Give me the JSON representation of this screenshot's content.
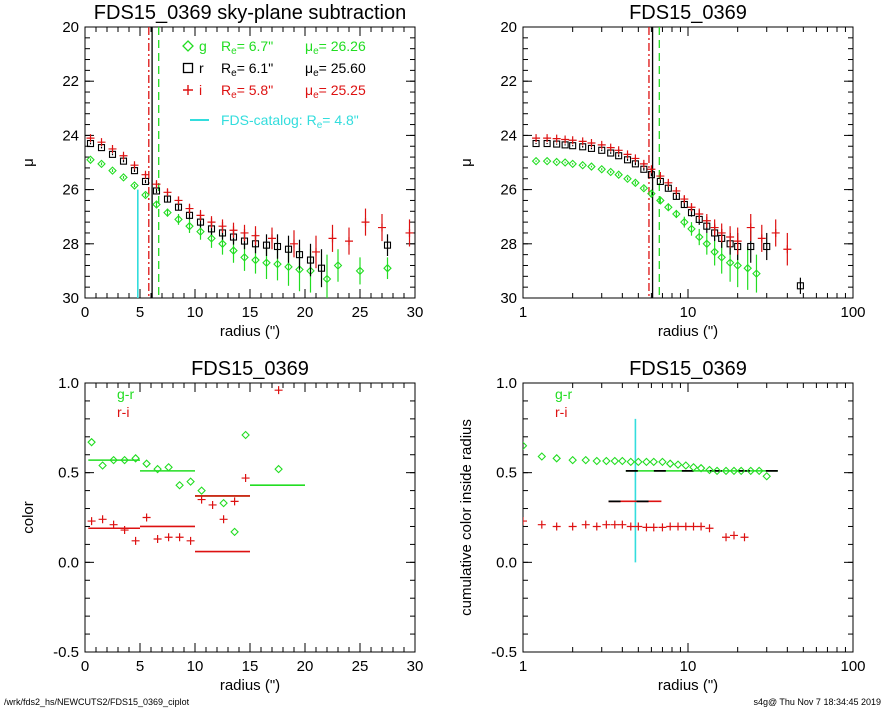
{
  "footer": {
    "path": "/wrk/fds2_hs/NEWCUTS2/FDS15_0369_ciplot",
    "stamp": "s4g@  Thu Nov  7 18:34:45 2019"
  },
  "colors": {
    "g": "#22dd22",
    "r": "#000000",
    "i": "#dd1111",
    "catalog": "#33dddd"
  },
  "chart_data": [
    {
      "id": "p1",
      "type": "scatter",
      "title": "FDS15_0369 sky-plane subtraction",
      "xlabel": "radius (\")",
      "ylabel": "μ",
      "xlim": [
        0,
        30
      ],
      "ylim": [
        30,
        20
      ],
      "xscale": "linear",
      "xticks": [
        0,
        5,
        10,
        15,
        20,
        25,
        30
      ],
      "yticks": [
        20,
        22,
        24,
        26,
        28,
        30
      ],
      "legend": {
        "placement": "top-center",
        "rows": [
          {
            "band": "g",
            "re_label": "R",
            "re_sub": "e",
            "re_value": "=   6.7\"",
            "mu_label": "μ",
            "mu_sub": "e",
            "mu_value": "= 26.26",
            "color": "#22dd22",
            "marker": "diamond"
          },
          {
            "band": "r",
            "re_label": "R",
            "re_sub": "e",
            "re_value": "=   6.1\"",
            "mu_label": "μ",
            "mu_sub": "e",
            "mu_value": "= 25.60",
            "color": "#000000",
            "marker": "square"
          },
          {
            "band": "i",
            "re_label": "R",
            "re_sub": "e",
            "re_value": "=   5.8\"",
            "mu_label": "μ",
            "mu_sub": "e",
            "mu_value": "= 25.25",
            "color": "#dd1111",
            "marker": "plus"
          }
        ],
        "catalog": {
          "label": "FDS-catalog: R",
          "sub": "e",
          "value": "=   4.8\"",
          "color": "#33dddd"
        }
      },
      "vlines": [
        {
          "x": 6.7,
          "color": "#22dd22",
          "style": "dashed"
        },
        {
          "x": 6.1,
          "color": "#000000",
          "style": "solid"
        },
        {
          "x": 5.8,
          "color": "#dd1111",
          "style": "dashdot"
        }
      ],
      "catalog_line": {
        "x": 4.8,
        "y0": 30,
        "y1": 26.0
      },
      "series": [
        {
          "name": "g",
          "marker": "diamond",
          "color": "#22dd22",
          "x": [
            0.5,
            1.5,
            2.5,
            3.5,
            4.5,
            5.5,
            6.5,
            7.5,
            8.5,
            9.5,
            10.5,
            11.5,
            12.5,
            13.5,
            14.5,
            15.5,
            16.5,
            17.5,
            18.5,
            19.5,
            20.5,
            22,
            23,
            25,
            27.5
          ],
          "y": [
            24.9,
            25.05,
            25.3,
            25.55,
            25.85,
            26.2,
            26.55,
            26.85,
            27.1,
            27.35,
            27.55,
            27.8,
            28.0,
            28.25,
            28.5,
            28.6,
            28.7,
            28.75,
            28.85,
            28.95,
            29.0,
            29.3,
            28.8,
            29.0,
            28.9
          ],
          "err": [
            0.05,
            0.05,
            0.05,
            0.05,
            0.06,
            0.08,
            0.1,
            0.15,
            0.2,
            0.25,
            0.3,
            0.35,
            0.4,
            0.45,
            0.5,
            0.5,
            0.6,
            0.6,
            0.7,
            0.8,
            0.8,
            0.9,
            0.6,
            0.5,
            0.4
          ]
        },
        {
          "name": "r",
          "marker": "square",
          "color": "#000000",
          "x": [
            0.5,
            1.5,
            2.5,
            3.5,
            4.5,
            5.5,
            6.5,
            7.5,
            8.5,
            9.5,
            10.5,
            11.5,
            12.5,
            13.5,
            14.5,
            15.5,
            16.5,
            17.5,
            18.5,
            19.5,
            20.5,
            21.5,
            27.5
          ],
          "y": [
            24.3,
            24.45,
            24.7,
            24.95,
            25.3,
            25.7,
            26.05,
            26.35,
            26.65,
            26.95,
            27.2,
            27.45,
            27.6,
            27.75,
            27.9,
            28.0,
            28.05,
            28.1,
            28.2,
            28.4,
            28.6,
            28.9,
            28.05
          ],
          "err": [
            0.03,
            0.03,
            0.03,
            0.04,
            0.05,
            0.06,
            0.08,
            0.1,
            0.12,
            0.15,
            0.2,
            0.22,
            0.25,
            0.28,
            0.3,
            0.35,
            0.4,
            0.45,
            0.5,
            0.55,
            0.6,
            0.7,
            0.4
          ]
        },
        {
          "name": "i",
          "marker": "plus",
          "color": "#dd1111",
          "x": [
            0.5,
            1.5,
            2.5,
            3.5,
            4.5,
            5.5,
            6.5,
            7.5,
            8.5,
            9.5,
            10.5,
            11.5,
            12.5,
            13.5,
            14.5,
            15.5,
            17,
            19,
            21,
            22.5,
            24,
            25.5,
            27,
            29.5
          ],
          "y": [
            24.1,
            24.25,
            24.5,
            24.75,
            25.1,
            25.45,
            25.8,
            26.1,
            26.4,
            26.7,
            26.95,
            27.2,
            27.35,
            27.5,
            27.6,
            27.7,
            27.8,
            28.0,
            28.3,
            27.8,
            27.9,
            27.2,
            27.4,
            27.6
          ],
          "err": [
            0.03,
            0.03,
            0.04,
            0.05,
            0.06,
            0.08,
            0.1,
            0.12,
            0.15,
            0.18,
            0.2,
            0.22,
            0.25,
            0.28,
            0.3,
            0.35,
            0.4,
            0.5,
            0.6,
            0.5,
            0.5,
            0.5,
            0.5,
            0.5
          ]
        }
      ]
    },
    {
      "id": "p2",
      "type": "scatter",
      "title": "FDS15_0369",
      "xlabel": "radius (\")",
      "ylabel": "μ",
      "xlim": [
        1,
        100
      ],
      "ylim": [
        30,
        20
      ],
      "xscale": "log",
      "xticks": [
        1,
        10,
        100
      ],
      "yticks": [
        20,
        22,
        24,
        26,
        28,
        30
      ],
      "vlines": [
        {
          "x": 6.7,
          "color": "#22dd22",
          "style": "dashed"
        },
        {
          "x": 6.1,
          "color": "#000000",
          "style": "solid"
        },
        {
          "x": 5.8,
          "color": "#dd1111",
          "style": "dashdot"
        }
      ],
      "series": [
        {
          "name": "g",
          "marker": "diamond",
          "color": "#22dd22",
          "x": [
            1.2,
            1.4,
            1.6,
            1.8,
            2.0,
            2.3,
            2.6,
            3.0,
            3.4,
            3.8,
            4.3,
            4.8,
            5.4,
            6.0,
            6.8,
            7.6,
            8.5,
            9.5,
            10.5,
            11.7,
            13,
            14.5,
            16,
            18,
            20,
            23,
            26
          ],
          "y": [
            24.95,
            24.95,
            24.98,
            25.0,
            25.05,
            25.1,
            25.15,
            25.25,
            25.35,
            25.45,
            25.6,
            25.75,
            25.95,
            26.15,
            26.4,
            26.65,
            26.9,
            27.2,
            27.45,
            27.75,
            28.0,
            28.3,
            28.5,
            28.7,
            28.8,
            28.9,
            29.1
          ],
          "err": [
            0.03,
            0.03,
            0.03,
            0.03,
            0.03,
            0.03,
            0.03,
            0.04,
            0.04,
            0.05,
            0.05,
            0.06,
            0.07,
            0.08,
            0.1,
            0.12,
            0.15,
            0.2,
            0.25,
            0.3,
            0.4,
            0.5,
            0.6,
            0.7,
            0.8,
            0.8,
            0.7
          ]
        },
        {
          "name": "r",
          "marker": "square",
          "color": "#000000",
          "x": [
            1.2,
            1.4,
            1.6,
            1.8,
            2.0,
            2.3,
            2.6,
            3.0,
            3.4,
            3.8,
            4.3,
            4.8,
            5.4,
            6.0,
            6.8,
            7.6,
            8.5,
            9.5,
            10.5,
            11.7,
            13,
            14.5,
            16,
            18,
            20,
            24,
            30,
            48
          ],
          "y": [
            24.3,
            24.3,
            24.32,
            24.35,
            24.38,
            24.42,
            24.48,
            24.55,
            24.65,
            24.75,
            24.9,
            25.05,
            25.25,
            25.45,
            25.7,
            25.95,
            26.25,
            26.55,
            26.85,
            27.1,
            27.35,
            27.6,
            27.8,
            28.0,
            28.1,
            28.1,
            28.1,
            29.55
          ],
          "err": [
            0.02,
            0.02,
            0.02,
            0.02,
            0.02,
            0.03,
            0.03,
            0.03,
            0.03,
            0.04,
            0.04,
            0.05,
            0.05,
            0.06,
            0.07,
            0.08,
            0.1,
            0.12,
            0.15,
            0.2,
            0.25,
            0.3,
            0.35,
            0.4,
            0.5,
            0.6,
            0.5,
            0.3
          ]
        },
        {
          "name": "i",
          "marker": "plus",
          "color": "#dd1111",
          "x": [
            1.2,
            1.4,
            1.6,
            1.8,
            2.0,
            2.3,
            2.6,
            3.0,
            3.4,
            3.8,
            4.3,
            4.8,
            5.4,
            6.0,
            6.8,
            7.6,
            8.5,
            9.5,
            10.5,
            11.7,
            13,
            14.5,
            16,
            18,
            20,
            24,
            28,
            34,
            40
          ],
          "y": [
            24.1,
            24.1,
            24.12,
            24.15,
            24.18,
            24.22,
            24.28,
            24.35,
            24.45,
            24.55,
            24.7,
            24.85,
            25.05,
            25.25,
            25.5,
            25.75,
            26.05,
            26.35,
            26.65,
            26.9,
            27.15,
            27.4,
            27.6,
            27.75,
            27.9,
            27.4,
            27.8,
            27.6,
            28.2
          ],
          "err": [
            0.02,
            0.02,
            0.02,
            0.02,
            0.02,
            0.03,
            0.03,
            0.03,
            0.03,
            0.04,
            0.04,
            0.05,
            0.05,
            0.06,
            0.07,
            0.08,
            0.1,
            0.12,
            0.15,
            0.2,
            0.25,
            0.3,
            0.35,
            0.4,
            0.5,
            0.5,
            0.5,
            0.5,
            0.6
          ]
        }
      ]
    },
    {
      "id": "p3",
      "type": "scatter",
      "title": "FDS15_0369",
      "xlabel": "radius (\")",
      "ylabel": "color",
      "xlim": [
        0,
        30
      ],
      "ylim": [
        -0.5,
        1.0
      ],
      "xscale": "linear",
      "xticks": [
        0,
        5,
        10,
        15,
        20,
        25,
        30
      ],
      "yticks": [
        -0.5,
        0.0,
        0.5,
        1.0
      ],
      "legend": {
        "placement": "top-left",
        "entries": [
          {
            "label": "g-r",
            "color": "#22dd22"
          },
          {
            "label": "r-i",
            "color": "#dd1111"
          }
        ]
      },
      "series": [
        {
          "name": "g-r",
          "marker": "diamond",
          "color": "#22dd22",
          "x": [
            0.6,
            1.6,
            2.6,
            3.6,
            4.6,
            5.6,
            6.6,
            7.6,
            8.6,
            9.6,
            10.6,
            12.6,
            13.6,
            14.6,
            17.6
          ],
          "y": [
            0.67,
            0.54,
            0.57,
            0.57,
            0.58,
            0.55,
            0.52,
            0.53,
            0.43,
            0.45,
            0.4,
            0.33,
            0.17,
            0.71,
            0.52
          ]
        },
        {
          "name": "r-i",
          "marker": "plus",
          "color": "#dd1111",
          "x": [
            0.6,
            1.6,
            2.6,
            3.6,
            4.6,
            5.6,
            6.6,
            7.6,
            8.6,
            9.6,
            10.6,
            11.6,
            12.6,
            13.6,
            14.6,
            17.6
          ],
          "y": [
            0.23,
            0.24,
            0.21,
            0.18,
            0.12,
            0.25,
            0.13,
            0.14,
            0.14,
            0.12,
            0.35,
            0.32,
            0.24,
            0.34,
            0.47,
            0.96
          ]
        }
      ],
      "segments": [
        {
          "color": "#22dd22",
          "x0": 0.3,
          "x1": 5.0,
          "y": 0.57
        },
        {
          "color": "#22dd22",
          "x0": 5.0,
          "x1": 10.0,
          "y": 0.51
        },
        {
          "color": "#22dd22",
          "x0": 10.0,
          "x1": 15.0,
          "y": 0.37
        },
        {
          "color": "#22dd22",
          "x0": 15.0,
          "x1": 20.0,
          "y": 0.43
        },
        {
          "color": "#dd1111",
          "x0": 0.3,
          "x1": 5.0,
          "y": 0.19
        },
        {
          "color": "#dd1111",
          "x0": 5.0,
          "x1": 10.0,
          "y": 0.2
        },
        {
          "color": "#dd1111",
          "x0": 10.0,
          "x1": 15.0,
          "y": 0.06
        },
        {
          "color": "#dd1111",
          "x0": 10.0,
          "x1": 15.0,
          "y": 0.37
        }
      ]
    },
    {
      "id": "p4",
      "type": "scatter",
      "title": "FDS15_0369",
      "xlabel": "radius (\")",
      "ylabel": "cumulative color inside radius",
      "xlim": [
        1,
        100
      ],
      "ylim": [
        -0.5,
        1.0
      ],
      "xscale": "log",
      "xticks": [
        1,
        10,
        100
      ],
      "yticks": [
        -0.5,
        0.0,
        0.5,
        1.0
      ],
      "legend": {
        "placement": "top-left",
        "entries": [
          {
            "label": "g-r",
            "color": "#22dd22"
          },
          {
            "label": "r-i",
            "color": "#dd1111"
          }
        ]
      },
      "catalog_line": {
        "x": 4.8,
        "y0": 0.0,
        "y1": 0.8,
        "color": "#33dddd"
      },
      "series": [
        {
          "name": "g-r",
          "marker": "diamond",
          "color": "#22dd22",
          "x": [
            1.0,
            1.3,
            1.6,
            2.0,
            2.4,
            2.8,
            3.2,
            3.6,
            4.0,
            4.5,
            5.0,
            5.6,
            6.2,
            7.0,
            7.8,
            8.7,
            9.7,
            10.8,
            12,
            13.5,
            15,
            17,
            19,
            21,
            24,
            27,
            30
          ],
          "y": [
            0.65,
            0.59,
            0.58,
            0.57,
            0.57,
            0.565,
            0.565,
            0.565,
            0.565,
            0.56,
            0.56,
            0.56,
            0.56,
            0.56,
            0.55,
            0.545,
            0.54,
            0.53,
            0.525,
            0.515,
            0.51,
            0.51,
            0.51,
            0.51,
            0.51,
            0.51,
            0.48
          ]
        },
        {
          "name": "r-i",
          "marker": "plus",
          "color": "#dd1111",
          "x": [
            1.0,
            1.3,
            1.6,
            2.0,
            2.4,
            2.8,
            3.2,
            3.6,
            4.0,
            4.5,
            5.0,
            5.6,
            6.2,
            7.0,
            7.8,
            8.7,
            9.7,
            10.8,
            12,
            13.5,
            17,
            19,
            22
          ],
          "y": [
            0.23,
            0.21,
            0.2,
            0.2,
            0.21,
            0.2,
            0.21,
            0.21,
            0.21,
            0.2,
            0.2,
            0.195,
            0.195,
            0.195,
            0.2,
            0.2,
            0.2,
            0.2,
            0.2,
            0.19,
            0.14,
            0.15,
            0.14
          ]
        }
      ],
      "segments": [
        {
          "color": "#000000",
          "x0": 4.2,
          "x1": 35,
          "y": 0.51,
          "dash": true,
          "overlay": "#22dd22"
        },
        {
          "color": "#000000",
          "x0": 3.3,
          "x1": 6.9,
          "y": 0.34,
          "dash": true,
          "overlay": "#dd1111"
        }
      ]
    }
  ]
}
